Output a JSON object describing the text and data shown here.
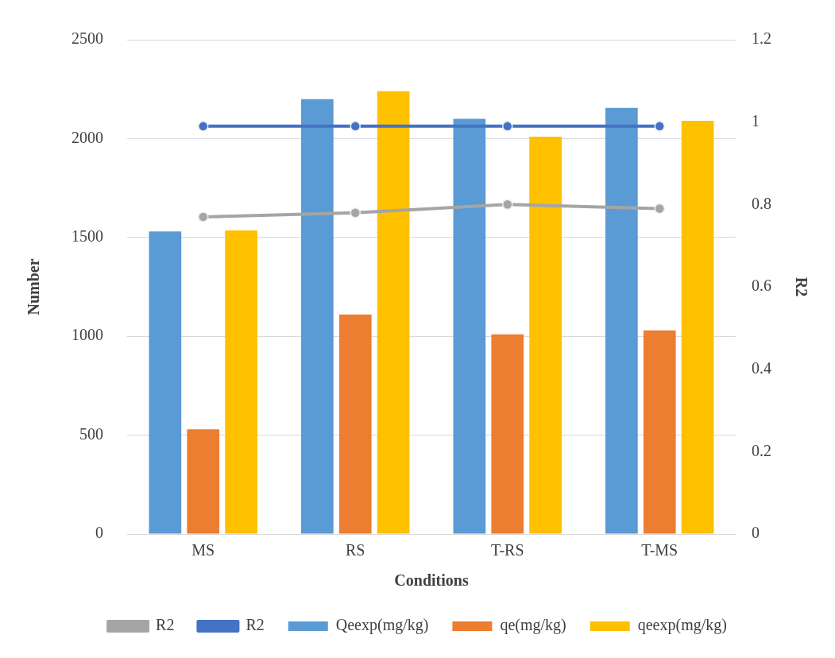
{
  "chart_data": {
    "type": "bar",
    "xlabel": "Conditions",
    "ylabel": "Number",
    "y2label": "R2",
    "categories": [
      "MS",
      "RS",
      "T-RS",
      "T-MS"
    ],
    "series": [
      {
        "name": "Qeexp(mg/kg)",
        "color": "#5b9bd5",
        "values": [
          1530,
          2200,
          2100,
          2155
        ]
      },
      {
        "name": "qe(mg/kg)",
        "color": "#ed7d31",
        "values": [
          530,
          1110,
          1010,
          1030
        ]
      },
      {
        "name": "qeexp(mg/kg)",
        "color": "#ffc000",
        "values": [
          1535,
          2240,
          2010,
          2090
        ]
      },
      {
        "name": "R2",
        "type": "line",
        "axis": "y2",
        "color": "#a5a5a5",
        "values": [
          0.77,
          0.78,
          0.8,
          0.79
        ]
      },
      {
        "name": "R2",
        "type": "line",
        "axis": "y2",
        "color": "#4472c4",
        "values": [
          0.99,
          0.99,
          0.99,
          0.99
        ]
      }
    ],
    "ylim": [
      0,
      2500
    ],
    "yticks": [
      0,
      500,
      1000,
      1500,
      2000,
      2500
    ],
    "y2lim": [
      0,
      1.2
    ],
    "y2ticks": [
      0,
      0.2,
      0.4,
      0.6,
      0.8,
      1,
      1.2
    ],
    "grid": "y",
    "legend": "bottom",
    "marker": "circle",
    "line_style": "solid"
  }
}
